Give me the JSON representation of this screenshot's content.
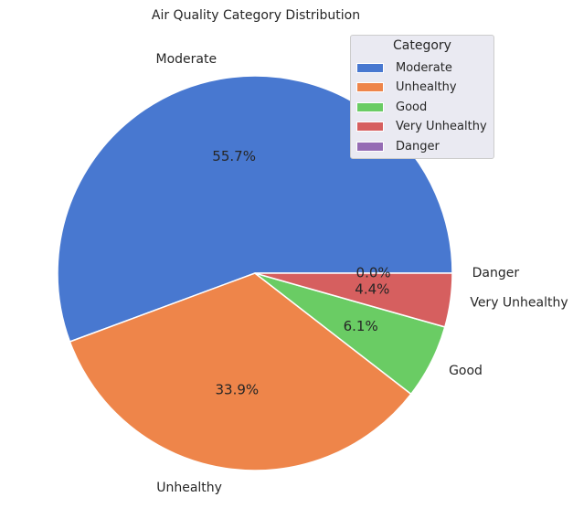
{
  "chart_data": {
    "type": "pie",
    "title": "Air Quality Category Distribution",
    "categories": [
      "Moderate",
      "Unhealthy",
      "Good",
      "Very Unhealthy",
      "Danger"
    ],
    "values": [
      55.7,
      33.9,
      6.1,
      4.4,
      0.0
    ],
    "percent_labels": [
      "55.7%",
      "33.9%",
      "6.1%",
      "4.4%",
      "0.0%"
    ],
    "colors": [
      "#4878d0",
      "#ee854a",
      "#6acc64",
      "#d65f5f",
      "#956cb4"
    ],
    "start_angle_deg": 0,
    "direction": "counterclockwise",
    "legend": {
      "title": "Category",
      "placement": "top-right",
      "entries": [
        "Moderate",
        "Unhealthy",
        "Good",
        "Very Unhealthy",
        "Danger"
      ]
    }
  }
}
